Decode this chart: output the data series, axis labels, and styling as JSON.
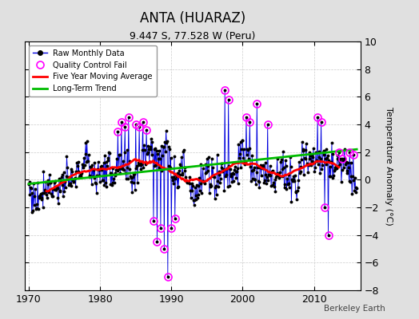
{
  "title": "ANTA (HUARAZ)",
  "subtitle": "9.447 S, 77.528 W (Peru)",
  "ylabel": "Temperature Anomaly (°C)",
  "xlim": [
    1969.5,
    2016.5
  ],
  "ylim": [
    -8,
    10
  ],
  "yticks": [
    -8,
    -6,
    -4,
    -2,
    0,
    2,
    4,
    6,
    8,
    10
  ],
  "xticks": [
    1970,
    1980,
    1990,
    2000,
    2010
  ],
  "background_color": "#e0e0e0",
  "plot_bg_color": "#ffffff",
  "raw_line_color": "#0000dd",
  "raw_marker_color": "#000000",
  "qc_fail_color": "#ff00ff",
  "moving_avg_color": "#ff0000",
  "trend_color": "#00bb00",
  "watermark": "Berkeley Earth",
  "title_fontsize": 12,
  "subtitle_fontsize": 9,
  "ylabel_fontsize": 8,
  "tick_fontsize": 9
}
